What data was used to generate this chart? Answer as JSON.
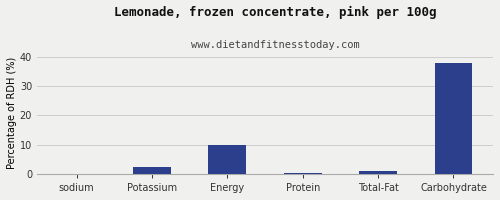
{
  "title": "Lemonade, frozen concentrate, pink per 100g",
  "subtitle": "www.dietandfitnesstoday.com",
  "categories": [
    "sodium",
    "Potassium",
    "Energy",
    "Protein",
    "Total-Fat",
    "Carbohydrate"
  ],
  "values": [
    0,
    2.5,
    10.0,
    0.2,
    1.0,
    38.0
  ],
  "bar_color": "#2b3f8c",
  "ylabel": "Percentage of RDH (%)",
  "ylim": [
    0,
    42
  ],
  "yticks": [
    0,
    10,
    20,
    30,
    40
  ],
  "background_color": "#f0f0ee",
  "grid_color": "#cccccc",
  "title_fontsize": 9,
  "subtitle_fontsize": 7.5,
  "tick_fontsize": 7,
  "ylabel_fontsize": 7,
  "border_color": "#aaaaaa"
}
